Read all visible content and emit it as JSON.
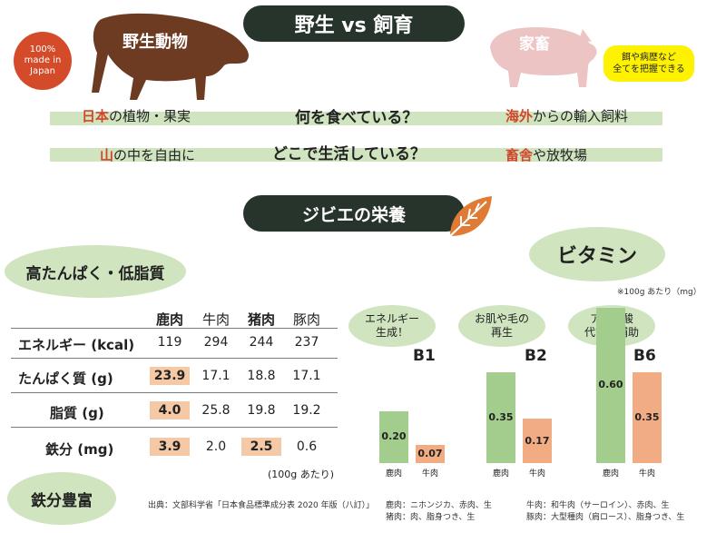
{
  "header": {
    "title": "野生 vs 飼育",
    "wild_label": "野生動物",
    "farm_label": "家畜",
    "badge": {
      "line1": "100%",
      "line2": "made in",
      "line3": "Japan"
    },
    "note_bubble": {
      "line1": "餌や病歴など",
      "line2": "全てを把握できる"
    }
  },
  "comparison": {
    "rows": [
      {
        "question": "何を食べている？",
        "wild_em": "日本",
        "wild_rest": "の植物・果実",
        "farm_em": "海外",
        "farm_rest": "からの輸入飼料"
      },
      {
        "question": "どこで生活している？",
        "wild_em": "山",
        "wild_rest": "の中を自由に",
        "farm_em": "畜舎",
        "farm_rest": "や放牧場"
      }
    ]
  },
  "nutrition": {
    "section_title": "ジビエの栄養",
    "bubble_left": "高たんぱく・低脂質",
    "bubble_iron": "鉄分豊富",
    "columns": [
      "鹿肉",
      "牛肉",
      "猪肉",
      "豚肉"
    ],
    "rows": [
      {
        "label": "エネルギー (kcal)",
        "values": [
          "119",
          "294",
          "244",
          "237"
        ]
      },
      {
        "label": "たんぱく質 (g)",
        "values": [
          "23.9",
          "17.1",
          "18.8",
          "17.1"
        ]
      },
      {
        "label": "脂質 (g)",
        "values": [
          "4.0",
          "25.8",
          "19.8",
          "19.2"
        ]
      },
      {
        "label": "鉄分 (mg)",
        "values": [
          "3.9",
          "2.0",
          "2.5",
          "0.6"
        ]
      }
    ],
    "per_note": "(100g あたり)"
  },
  "vitamin": {
    "title": "ビタミン",
    "per_note": "※100g あたり（mg）",
    "groups": [
      {
        "name": "B1",
        "bubble1": "エネルギー",
        "bubble2": "生成！"
      },
      {
        "name": "B2",
        "bubble1": "お肌や毛の",
        "bubble2": "再生"
      },
      {
        "name": "B6",
        "bubble1": "アミノ酸",
        "bubble2": "代謝の補助"
      }
    ]
  },
  "chart_data": {
    "type": "bar",
    "categories": [
      "B1",
      "B2",
      "B6"
    ],
    "series": [
      {
        "name": "鹿肉",
        "values": [
          0.2,
          0.35,
          0.6
        ]
      },
      {
        "name": "牛肉",
        "values": [
          0.07,
          0.17,
          0.35
        ]
      }
    ],
    "ylim": [
      0,
      0.7
    ]
  },
  "source": {
    "line1": "出典：文部科学省「日本食品標準成分表 2020 年版（八訂）」",
    "deer": "鹿肉：ニホンジカ、赤肉、生",
    "boar": "猪肉：肉、脂身つき、生",
    "beef": "牛肉：和牛肉（サーロイン）、赤肉、生",
    "pork": "豚肉：大型種肉（肩ロース）、脂身つき、生"
  },
  "colors": {
    "dark": "#26342c",
    "green": "#a3cd8c",
    "orange": "#f2ac84",
    "red": "#d2452a",
    "animal": "#6d3a22",
    "pig": "#edc4c4"
  }
}
